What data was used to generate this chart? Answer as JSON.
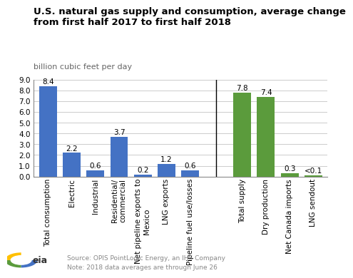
{
  "title": "U.S. natural gas supply and consumption, average change\nfrom first half 2017 to first half 2018",
  "subtitle": "billion cubic feet per day",
  "consumption_labels": [
    "Total consumption",
    "Electric",
    "Industrial",
    "Residential/\ncommercial",
    "Net pipeline exports to\nMexico",
    "LNG exports",
    "Pipeline fuel use/losses"
  ],
  "consumption_values": [
    8.4,
    2.2,
    0.6,
    3.7,
    0.2,
    1.2,
    0.6
  ],
  "consumption_color": "#4472C4",
  "supply_labels": [
    "Total supply",
    "Dry production",
    "Net Canada imports",
    "LNG sendout"
  ],
  "supply_values": [
    7.8,
    7.4,
    0.3,
    0.1
  ],
  "supply_value_labels": [
    "7.8",
    "7.4",
    "0.3",
    "<0.1"
  ],
  "supply_color": "#5B9B3C",
  "ylim": [
    0,
    9.0
  ],
  "yticks": [
    0.0,
    1.0,
    2.0,
    3.0,
    4.0,
    5.0,
    6.0,
    7.0,
    8.0,
    9.0
  ],
  "source_text": "Source: OPIS PointLogic Energy, an IHS Company",
  "note_text": "Note: 2018 data averages are through June 26",
  "bg_color": "#FFFFFF",
  "grid_color": "#CCCCCC",
  "bar_label_fontsize": 7.5,
  "tick_label_fontsize": 7.5,
  "title_fontsize": 9.5,
  "subtitle_fontsize": 8.0
}
